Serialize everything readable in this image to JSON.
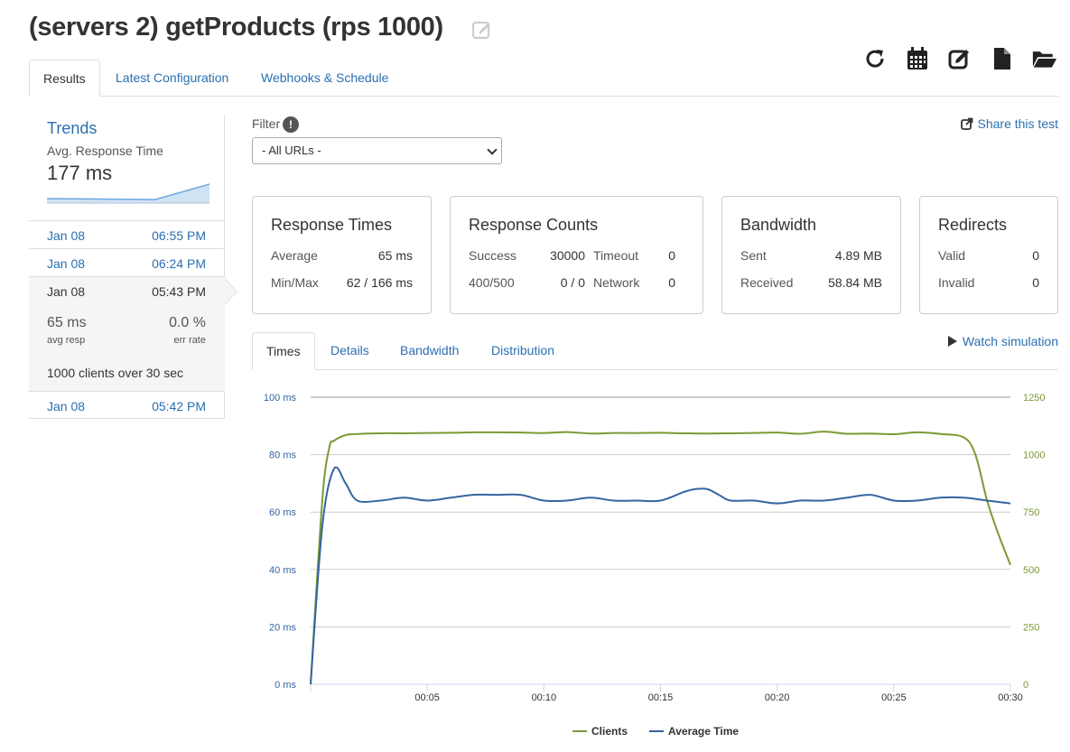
{
  "page": {
    "title": "(servers 2) getProducts (rps 1000)"
  },
  "toolbar": {
    "icons": [
      "refresh-icon",
      "calendar-icon",
      "edit-icon",
      "file-icon",
      "folder-open-icon"
    ]
  },
  "tabs": [
    "Results",
    "Latest Configuration",
    "Webhooks & Schedule"
  ],
  "sidebar": {
    "trends_title": "Trends",
    "trends_sub": "Avg. Response Time",
    "trends_value": "177 ms",
    "runs": [
      {
        "date": "Jan 08",
        "time": "06:55 PM"
      },
      {
        "date": "Jan 08",
        "time": "06:24 PM"
      },
      {
        "date": "Jan 08",
        "time": "05:43 PM"
      },
      {
        "date": "Jan 08",
        "time": "05:42 PM"
      }
    ],
    "active": {
      "avg_resp": "65 ms",
      "avg_resp_label": "avg resp",
      "err_rate": "0.0 %",
      "err_rate_label": "err rate",
      "clients": "1000",
      "clients_mid": " clients over ",
      "duration": "30",
      "duration_unit": " sec"
    }
  },
  "filter": {
    "label": "Filter",
    "info": "!",
    "selected": "- All URLs -"
  },
  "share": "Share this test",
  "boxes": {
    "response_times": {
      "title": "Response Times",
      "avg_label": "Average",
      "avg": "65 ms",
      "minmax_label": "Min/Max",
      "minmax": "62 / 166 ms"
    },
    "response_counts": {
      "title": "Response Counts",
      "success_label": "Success",
      "success": "30000",
      "timeout_label": "Timeout",
      "timeout": "0",
      "err_label": "400/500",
      "err": "0 / 0",
      "network_label": "Network",
      "network": "0"
    },
    "bandwidth": {
      "title": "Bandwidth",
      "sent_label": "Sent",
      "sent": "4.89 MB",
      "recv_label": "Received",
      "recv": "58.84 MB"
    },
    "redirects": {
      "title": "Redirects",
      "valid_label": "Valid",
      "valid": "0",
      "invalid_label": "Invalid",
      "invalid": "0"
    }
  },
  "chart_tabs": [
    "Times",
    "Details",
    "Bandwidth",
    "Distribution"
  ],
  "watch": "Watch simulation",
  "colors": {
    "clients": "#7a9a35",
    "avg_time": "#3465a0"
  },
  "chart_data": {
    "type": "line",
    "xlabel": "",
    "x_ticks": [
      "00:05",
      "00:10",
      "00:15",
      "00:20",
      "00:25",
      "00:30"
    ],
    "x_range_sec": [
      0,
      30
    ],
    "y_left": {
      "unit": "ms",
      "range": [
        0,
        100
      ],
      "ticks": [
        "0 ms",
        "20 ms",
        "40 ms",
        "60 ms",
        "80 ms",
        "100 ms"
      ]
    },
    "y_right": {
      "range": [
        0,
        1250
      ],
      "ticks": [
        "0",
        "250",
        "500",
        "750",
        "1000",
        "1250"
      ]
    },
    "grid": true,
    "legend": "bottom-center",
    "series": [
      {
        "name": "Clients",
        "axis": "right",
        "x": [
          0,
          0.5,
          0.8,
          1,
          1.5,
          2,
          3,
          4,
          5,
          6,
          7,
          8,
          9,
          10,
          11,
          12,
          13,
          14,
          15,
          16,
          17,
          18,
          19,
          20,
          21,
          22,
          23,
          24,
          25,
          26,
          27,
          28,
          28.5,
          29,
          29.5,
          30
        ],
        "y": [
          0,
          800,
          1030,
          1060,
          1085,
          1090,
          1093,
          1093,
          1094,
          1095,
          1097,
          1097,
          1096,
          1094,
          1098,
          1092,
          1094,
          1094,
          1095,
          1093,
          1092,
          1093,
          1094,
          1096,
          1091,
          1100,
          1091,
          1092,
          1089,
          1097,
          1090,
          1075,
          1000,
          800,
          650,
          520
        ]
      },
      {
        "name": "Average Time",
        "axis": "left",
        "x": [
          0,
          0.5,
          1,
          1.5,
          2,
          3,
          4,
          5,
          6,
          7,
          8,
          9,
          10,
          11,
          12,
          13,
          14,
          15,
          16,
          16.5,
          17,
          17.5,
          18,
          19,
          20,
          21,
          22,
          23,
          24,
          25,
          26,
          27,
          28,
          29,
          30
        ],
        "y": [
          0,
          55,
          75,
          70,
          64,
          64,
          65,
          64,
          65,
          66,
          66,
          66,
          64,
          64,
          65,
          64,
          64,
          64,
          67,
          68,
          68,
          66,
          64,
          64,
          63,
          64,
          64,
          65,
          66,
          64,
          64,
          65,
          65,
          64,
          63
        ]
      }
    ]
  }
}
